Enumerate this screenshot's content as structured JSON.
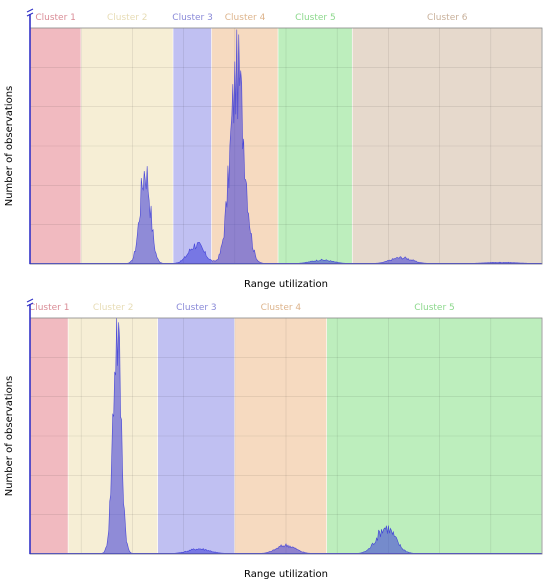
{
  "chart_data": [
    {
      "type": "area",
      "title": "",
      "xlabel": "Range utilization",
      "ylabel": "Number of observations",
      "grid": true,
      "clusters": [
        {
          "label": "Cluster 1",
          "start": 0.0,
          "end": 0.1,
          "fill": "#e6828c",
          "text_color": "#d98c96"
        },
        {
          "label": "Cluster 2",
          "start": 0.1,
          "end": 0.28,
          "fill": "#eee0b3",
          "text_color": "#e7dcb5"
        },
        {
          "label": "Cluster 3",
          "start": 0.28,
          "end": 0.355,
          "fill": "#8c8ce8",
          "text_color": "#8a8ad8"
        },
        {
          "label": "Cluster 4",
          "start": 0.355,
          "end": 0.485,
          "fill": "#eebb8c",
          "text_color": "#ddb48c"
        },
        {
          "label": "Cluster 5",
          "start": 0.485,
          "end": 0.63,
          "fill": "#86e086",
          "text_color": "#8cd88c"
        },
        {
          "label": "Cluster 6",
          "start": 0.63,
          "end": 1.0,
          "fill": "#d2baa2",
          "text_color": "#c8b09a"
        }
      ],
      "xlim": [
        0,
        1
      ],
      "ylim": [
        0,
        1
      ],
      "series": [
        {
          "color": "#3a3ad8",
          "peaks": [
            {
              "center": 0.225,
              "height": 0.4,
              "width": 0.01
            },
            {
              "center": 0.325,
              "height": 0.08,
              "width": 0.015
            },
            {
              "center": 0.405,
              "height": 0.8,
              "width": 0.014
            },
            {
              "center": 0.57,
              "height": 0.015,
              "width": 0.02
            },
            {
              "center": 0.725,
              "height": 0.025,
              "width": 0.02
            },
            {
              "center": 0.92,
              "height": 0.005,
              "width": 0.03
            }
          ]
        }
      ]
    },
    {
      "type": "area",
      "title": "",
      "xlabel": "Range utilization",
      "ylabel": "Number of observations",
      "grid": true,
      "clusters": [
        {
          "label": "Cluster 1",
          "start": 0.0,
          "end": 0.075,
          "fill": "#e6828c",
          "text_color": "#d98c96"
        },
        {
          "label": "Cluster 2",
          "start": 0.075,
          "end": 0.25,
          "fill": "#eee0b3",
          "text_color": "#e7dcb5"
        },
        {
          "label": "Cluster 3",
          "start": 0.25,
          "end": 0.4,
          "fill": "#8c8ce8",
          "text_color": "#8a8ad8"
        },
        {
          "label": "Cluster 4",
          "start": 0.4,
          "end": 0.58,
          "fill": "#eebb8c",
          "text_color": "#ddb48c"
        },
        {
          "label": "Cluster 5",
          "start": 0.58,
          "end": 1.0,
          "fill": "#86e086",
          "text_color": "#8cd88c"
        }
      ],
      "xlim": [
        0,
        1
      ],
      "ylim": [
        0,
        1
      ],
      "series": [
        {
          "color": "#3a3ad8",
          "peaks": [
            {
              "center": 0.17,
              "height": 0.95,
              "width": 0.008
            },
            {
              "center": 0.33,
              "height": 0.02,
              "width": 0.02
            },
            {
              "center": 0.5,
              "height": 0.035,
              "width": 0.018
            },
            {
              "center": 0.695,
              "height": 0.11,
              "width": 0.018
            }
          ]
        }
      ]
    }
  ]
}
